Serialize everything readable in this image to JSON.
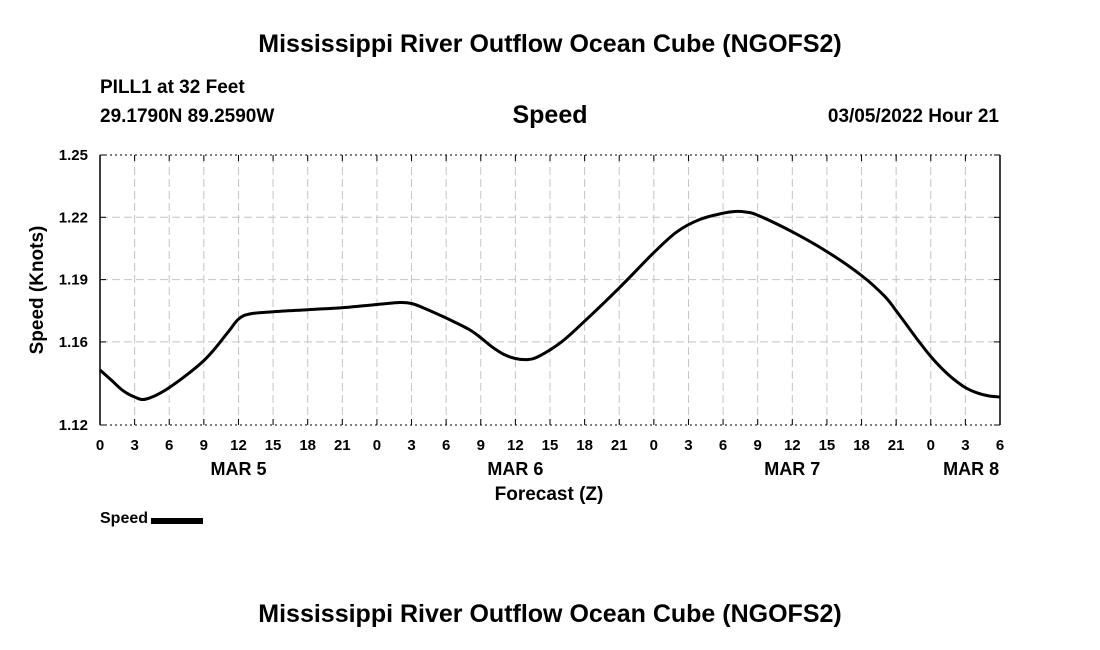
{
  "header": {
    "title": "Mississippi River Outflow Ocean Cube (NGOFS2)",
    "station": "PILL1 at 32 Feet",
    "coordinates": "29.1790N  89.2590W",
    "variable": "Speed",
    "datetime": "03/05/2022 Hour 21"
  },
  "footer": {
    "title": "Mississippi River Outflow Ocean Cube (NGOFS2)"
  },
  "legend": {
    "label": "Speed"
  },
  "chart_data": {
    "type": "line",
    "title": "Speed",
    "xlabel": "Forecast (Z)",
    "ylabel": "Speed (Knots)",
    "ylim": [
      1.12,
      1.25
    ],
    "xlim": [
      0,
      78
    ],
    "x_unit": "hours from MAR 5 00Z",
    "yticks": [
      "1.12",
      "1.16",
      "1.19",
      "1.22",
      "1.25"
    ],
    "ytick_values": [
      1.12,
      1.16,
      1.19,
      1.22,
      1.25
    ],
    "xtick_hours": [
      0,
      3,
      6,
      9,
      12,
      15,
      18,
      21,
      24,
      27,
      30,
      33,
      36,
      39,
      42,
      45,
      48,
      51,
      54,
      57,
      60,
      63,
      66,
      69,
      72,
      75,
      78
    ],
    "xtick_labels": [
      "0",
      "3",
      "6",
      "9",
      "12",
      "15",
      "18",
      "21",
      "0",
      "3",
      "6",
      "9",
      "12",
      "15",
      "18",
      "21",
      "0",
      "3",
      "6",
      "9",
      "12",
      "15",
      "18",
      "21",
      "0",
      "3",
      "6"
    ],
    "date_labels": [
      {
        "label": "MAR 5",
        "hour": 12
      },
      {
        "label": "MAR 6",
        "hour": 36
      },
      {
        "label": "MAR 7",
        "hour": 60
      },
      {
        "label": "MAR 8",
        "hour": 75.5
      }
    ],
    "grid": true,
    "legend_position": "bottom-left",
    "series": [
      {
        "name": "Speed",
        "color": "#000000",
        "x": [
          0,
          1,
          2,
          3,
          4,
          6,
          9,
          11,
          12,
          13,
          15,
          18,
          21,
          24,
          26,
          27,
          28,
          30,
          32,
          33,
          34,
          35,
          36,
          37,
          38,
          40,
          42,
          45,
          48,
          50,
          52,
          54,
          55,
          56,
          57,
          60,
          63,
          66,
          68,
          69,
          70,
          71,
          72,
          73,
          74,
          75,
          76,
          77,
          78
        ],
        "y": [
          1.1465,
          1.1415,
          1.1365,
          1.1335,
          1.1325,
          1.138,
          1.151,
          1.164,
          1.171,
          1.1735,
          1.1745,
          1.1755,
          1.1765,
          1.178,
          1.179,
          1.1785,
          1.1765,
          1.1715,
          1.166,
          1.162,
          1.1575,
          1.154,
          1.152,
          1.1515,
          1.153,
          1.16,
          1.17,
          1.186,
          1.203,
          1.213,
          1.219,
          1.222,
          1.2228,
          1.2225,
          1.221,
          1.213,
          1.2035,
          1.192,
          1.182,
          1.175,
          1.1675,
          1.16,
          1.153,
          1.147,
          1.142,
          1.138,
          1.1355,
          1.134,
          1.1335
        ]
      }
    ]
  }
}
